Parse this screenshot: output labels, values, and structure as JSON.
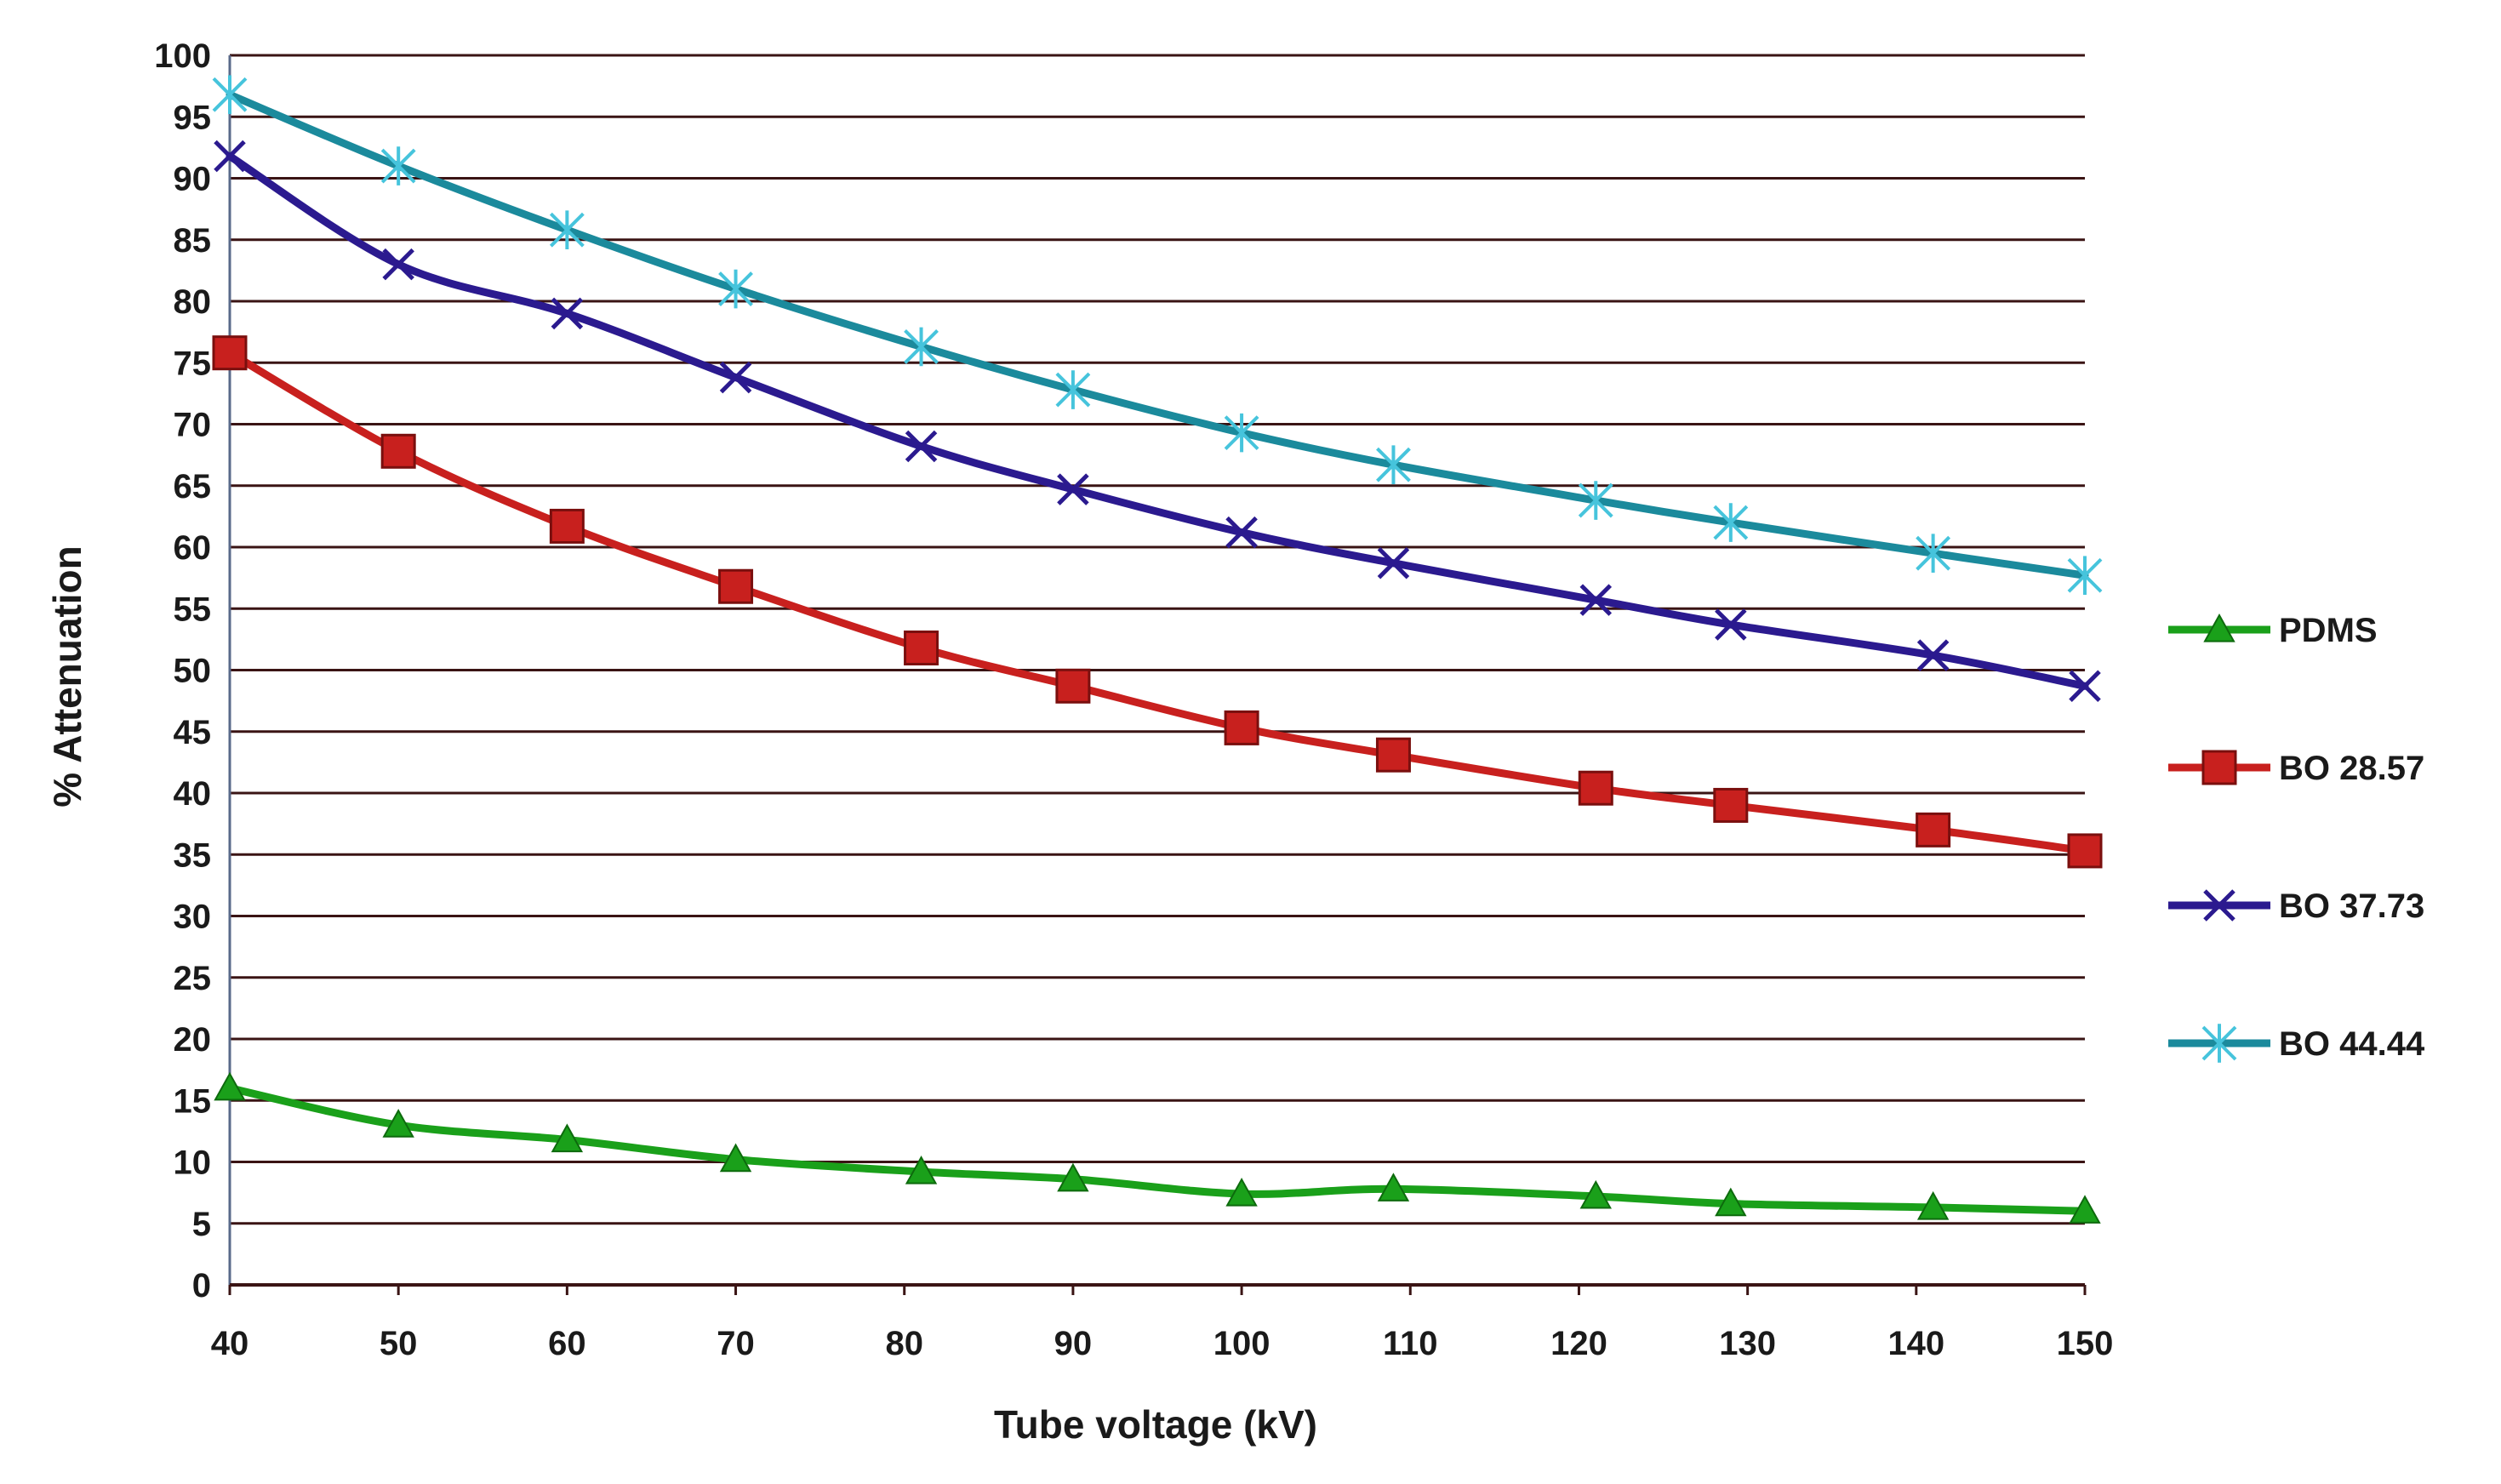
{
  "chart_data": {
    "type": "line",
    "title": "",
    "xlabel": "Tube voltage (kV)",
    "ylabel": "% Attenuation",
    "xlim": [
      40,
      150
    ],
    "ylim": [
      0,
      100
    ],
    "x_ticks": [
      40,
      50,
      60,
      70,
      80,
      90,
      100,
      110,
      120,
      130,
      140,
      150
    ],
    "y_ticks": [
      0,
      5,
      10,
      15,
      20,
      25,
      30,
      35,
      40,
      45,
      50,
      55,
      60,
      65,
      70,
      75,
      80,
      85,
      90,
      95,
      100
    ],
    "grid": "horizontal",
    "legend_position": "right",
    "series": [
      {
        "name": "PDMS",
        "color": "#1aa01a",
        "marker": "triangle",
        "x": [
          40,
          50,
          60,
          70,
          81,
          90,
          100,
          109,
          121,
          129,
          141,
          150
        ],
        "values": [
          16,
          13,
          11.8,
          10.2,
          9.2,
          8.6,
          7.4,
          7.8,
          7.2,
          6.6,
          6.3,
          6.0
        ]
      },
      {
        "name": "BO 28.57",
        "color": "#c8201e",
        "marker": "square",
        "x": [
          40,
          50,
          60,
          70,
          81,
          90,
          100,
          109,
          121,
          129,
          141,
          150
        ],
        "values": [
          75.8,
          67.8,
          61.7,
          56.8,
          51.8,
          48.7,
          45.3,
          43.1,
          40.4,
          39.0,
          37.0,
          35.3
        ]
      },
      {
        "name": "BO 37.73",
        "color": "#2b1a8f",
        "marker": "x",
        "x": [
          40,
          50,
          60,
          70,
          81,
          90,
          100,
          109,
          121,
          129,
          141,
          150
        ],
        "values": [
          91.8,
          83.0,
          79.0,
          73.8,
          68.2,
          64.7,
          61.2,
          58.7,
          55.7,
          53.7,
          51.2,
          48.7
        ]
      },
      {
        "name": "BO 44.44",
        "color": "#1b8a9c",
        "marker": "asterisk",
        "x": [
          40,
          50,
          60,
          70,
          81,
          90,
          100,
          109,
          121,
          129,
          141,
          150
        ],
        "values": [
          96.8,
          91.0,
          85.8,
          81.0,
          76.3,
          72.8,
          69.3,
          66.7,
          63.8,
          62.0,
          59.5,
          57.7
        ]
      }
    ]
  }
}
